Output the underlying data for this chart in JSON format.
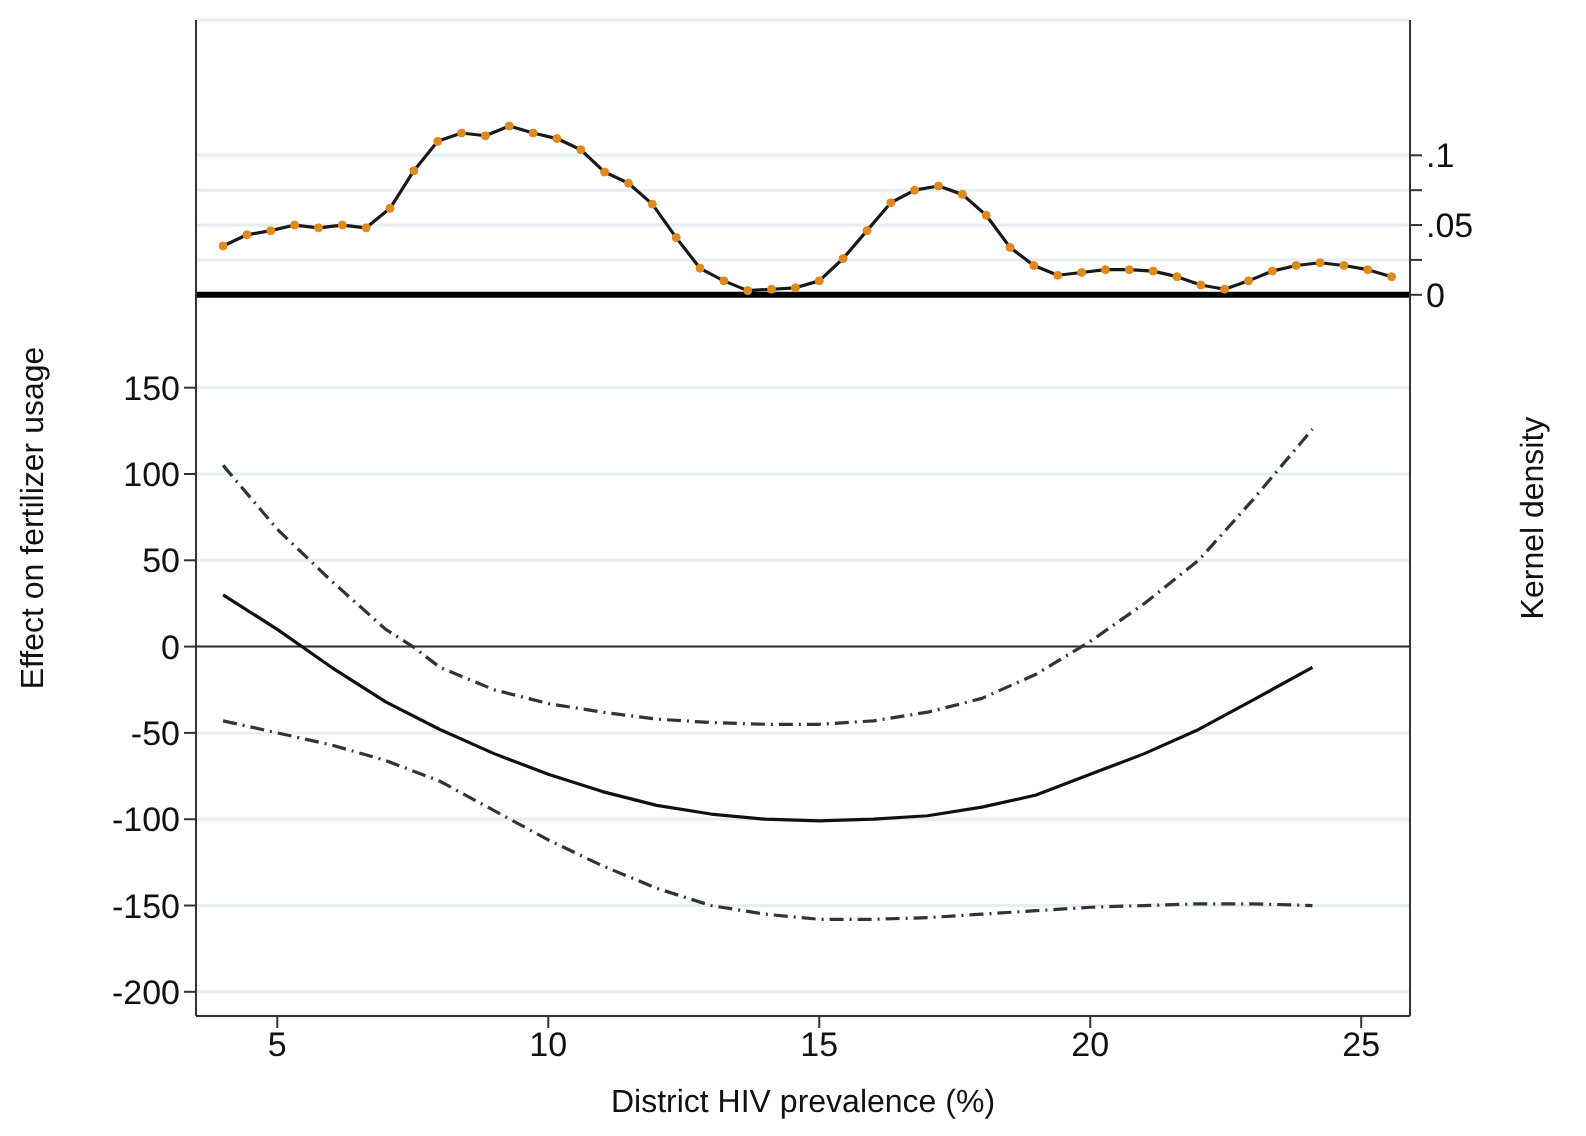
{
  "chart_data": {
    "type": "line",
    "xlabel": "District HIV prevalence (%)",
    "ylabel": "Effect on fertilizer usage",
    "y2label": "Kernel density",
    "xlim": [
      3.5,
      25.9
    ],
    "xticks": [
      5,
      10,
      15,
      20,
      25
    ],
    "ylim": [
      -214,
      363
    ],
    "yticks": [
      -200,
      -150,
      -100,
      -50,
      0,
      50,
      100,
      150
    ],
    "y2lim": [
      -0.517,
      0.197
    ],
    "y2ticks": [
      0,
      {
        "value": 0.025,
        "label": null
      },
      {
        "value": 0.05,
        "label": ".05"
      },
      {
        "value": 0.075,
        "label": null
      },
      {
        "value": 0.1,
        "label": ".1"
      }
    ],
    "grid": "y",
    "line_style": "solid",
    "ref_lines": [
      {
        "axis": "y",
        "value": 0,
        "color": "#333333"
      },
      {
        "axis": "y2",
        "value": 0,
        "color": "#000000"
      }
    ],
    "series": [
      {
        "axis": "y2",
        "color": "#1a1a1a",
        "marker": "circle",
        "x": [
          4,
          4.44,
          4.88,
          5.32,
          5.76,
          6.2,
          6.64,
          7.08,
          7.52,
          7.96,
          8.4,
          8.84,
          9.28,
          9.72,
          10.16,
          10.6,
          11.04,
          11.48,
          11.92,
          12.36,
          12.8,
          13.24,
          13.68,
          14.12,
          14.56,
          15,
          15.44,
          15.88,
          16.32,
          16.76,
          17.2,
          17.64,
          18.08,
          18.52,
          18.96,
          19.4,
          19.84,
          20.28,
          20.72,
          21.16,
          21.6,
          22.04,
          22.48,
          22.92,
          23.36,
          23.8,
          24.24,
          24.68,
          25.12,
          25.56
        ],
        "values": [
          0.035,
          0.043,
          0.046,
          0.05,
          0.048,
          0.05,
          0.048,
          0.062,
          0.089,
          0.11,
          0.116,
          0.114,
          0.121,
          0.116,
          0.112,
          0.104,
          0.088,
          0.08,
          0.065,
          0.041,
          0.019,
          0.01,
          0.003,
          0.004,
          0.005,
          0.01,
          0.026,
          0.046,
          0.066,
          0.075,
          0.078,
          0.072,
          0.057,
          0.034,
          0.021,
          0.014,
          0.016,
          0.018,
          0.018,
          0.017,
          0.013,
          0.007,
          0.004,
          0.01,
          0.017,
          0.021,
          0.023,
          0.021,
          0.018,
          0.013
        ]
      },
      {
        "color": "#111111",
        "line_style": "solid",
        "x": [
          4,
          5,
          6,
          7,
          8,
          9,
          10,
          11,
          12,
          13,
          14,
          15,
          16,
          17,
          18,
          19,
          20,
          21,
          22,
          23,
          24.1
        ],
        "values": [
          30,
          10,
          -12,
          -32,
          -48,
          -62,
          -74,
          -84,
          -92,
          -97,
          -100,
          -101,
          -100,
          -98,
          -93,
          -86,
          -74,
          -62,
          -48,
          -31,
          -12
        ]
      },
      {
        "color": "#333333",
        "line_style": "dashed",
        "x": [
          4,
          5,
          6,
          7,
          7.5,
          8,
          9,
          10,
          11,
          12,
          13,
          14,
          15,
          16,
          17,
          18,
          19,
          20,
          21,
          22,
          23,
          24.1
        ],
        "values": [
          105,
          68,
          38,
          10,
          0,
          -12,
          -25,
          -33,
          -38,
          -42,
          -44,
          -45,
          -45,
          -43,
          -38,
          -30,
          -16,
          3,
          25,
          50,
          85,
          126
        ]
      },
      {
        "color": "#333333",
        "line_style": "dashed",
        "x": [
          4,
          5,
          6,
          7,
          8,
          9,
          10,
          11,
          12,
          13,
          14,
          15,
          16,
          17,
          18,
          19,
          20,
          21,
          22,
          23,
          24.1
        ],
        "values": [
          -43,
          -50,
          -57,
          -66,
          -78,
          -95,
          -112,
          -127,
          -140,
          -150,
          -155,
          -158,
          -158,
          -157,
          -155,
          -153,
          -151,
          -150,
          -149,
          -149,
          -150
        ]
      }
    ]
  }
}
